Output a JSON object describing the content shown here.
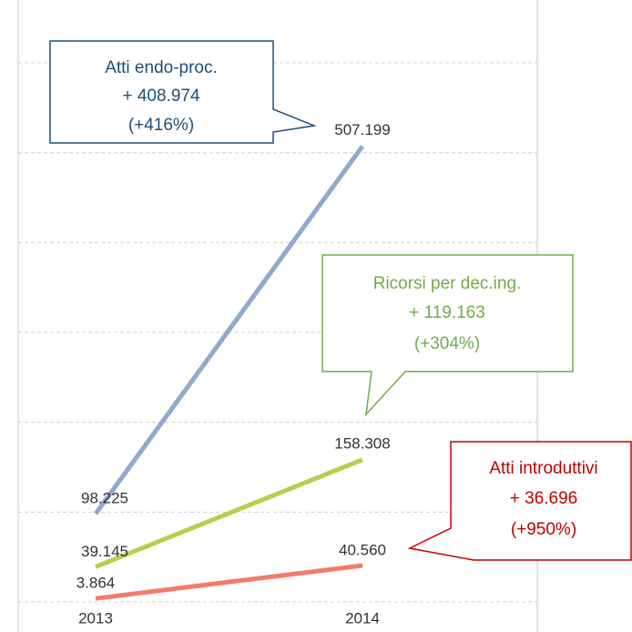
{
  "chart_data": {
    "type": "line",
    "x": [
      "2013",
      "2014"
    ],
    "series": [
      {
        "color": "#8eaacd",
        "values": [
          98225,
          507199
        ],
        "value_labels": [
          "98.225",
          "507.199"
        ]
      },
      {
        "color": "#b5d04c",
        "values": [
          39145,
          158308
        ],
        "value_labels": [
          "39.145",
          "158.308"
        ]
      },
      {
        "color": "#f47b6b",
        "values": [
          3864,
          40560
        ],
        "value_labels": [
          "3.864",
          "40.560"
        ]
      }
    ],
    "ylim": [
      0,
      670000
    ],
    "yticks": [
      0,
      100000,
      200000,
      300000,
      400000,
      500000,
      600000
    ],
    "grid": true,
    "annotations": [
      {
        "color": "#1f4e79",
        "lines": [
          "Atti endo-proc.",
          "+ 408.974",
          "(+416%)"
        ]
      },
      {
        "color": "#70ad47",
        "lines": [
          "Ricorsi per dec.ing.",
          "+ 119.163",
          "(+304%)"
        ]
      },
      {
        "color": "#c00000",
        "lines": [
          "Atti introduttivi",
          "+ 36.696",
          "(+950%)"
        ]
      }
    ]
  }
}
